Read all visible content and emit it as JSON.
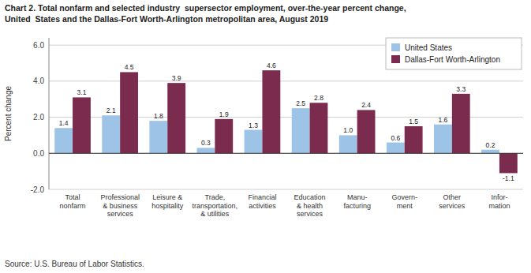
{
  "chart_data": {
    "type": "bar",
    "title": "Chart 2. Total nonfarm and selected industry  supersector employment, over-the-year percent change,",
    "subtitle": "United  States and the Dallas-Fort Worth-Arlington metropolitan area, August 2019",
    "y_label": "Percent change",
    "source": "Source: U.S. Bureau of Labor Statistics.",
    "categories": [
      "Total\nnonfarm",
      "Professional\n& business\nservices",
      "Leisure &\nhospitality",
      "Trade,\ntransportation,\n& utilities",
      "Financial\nactivities",
      "Education\n& health\nservices",
      "Manu-\nfacturing",
      "Govern-\nment",
      "Other\nservices",
      "Infor-\nmation"
    ],
    "series": [
      {
        "name": "United States",
        "color": "#9dc3e6",
        "values": [
          1.4,
          2.1,
          1.8,
          0.3,
          1.3,
          2.5,
          1.0,
          0.6,
          1.6,
          0.2
        ],
        "value_labels": [
          "1.4",
          "2.1",
          "1.8",
          "0.3",
          "1.3",
          "2.5",
          "1.0",
          "0.6",
          "1.6",
          "0.2"
        ]
      },
      {
        "name": "Dallas-Fort Worth-Arlington",
        "color": "#7b2c4e",
        "values": [
          3.1,
          4.5,
          3.9,
          1.9,
          4.6,
          2.8,
          2.4,
          1.5,
          3.3,
          -1.1
        ]
      }
    ],
    "ylim": [
      -2.0,
      6.4
    ],
    "yticks": [
      {
        "value": -2.0,
        "label": "-2.0"
      },
      {
        "value": 0.0,
        "label": "0.0"
      },
      {
        "value": 2.0,
        "label": "2.0"
      },
      {
        "value": 4.0,
        "label": "4.0"
      },
      {
        "value": 6.0,
        "label": "6.0"
      }
    ],
    "grid": true,
    "legend": "upper right",
    "data_labels": true
  }
}
